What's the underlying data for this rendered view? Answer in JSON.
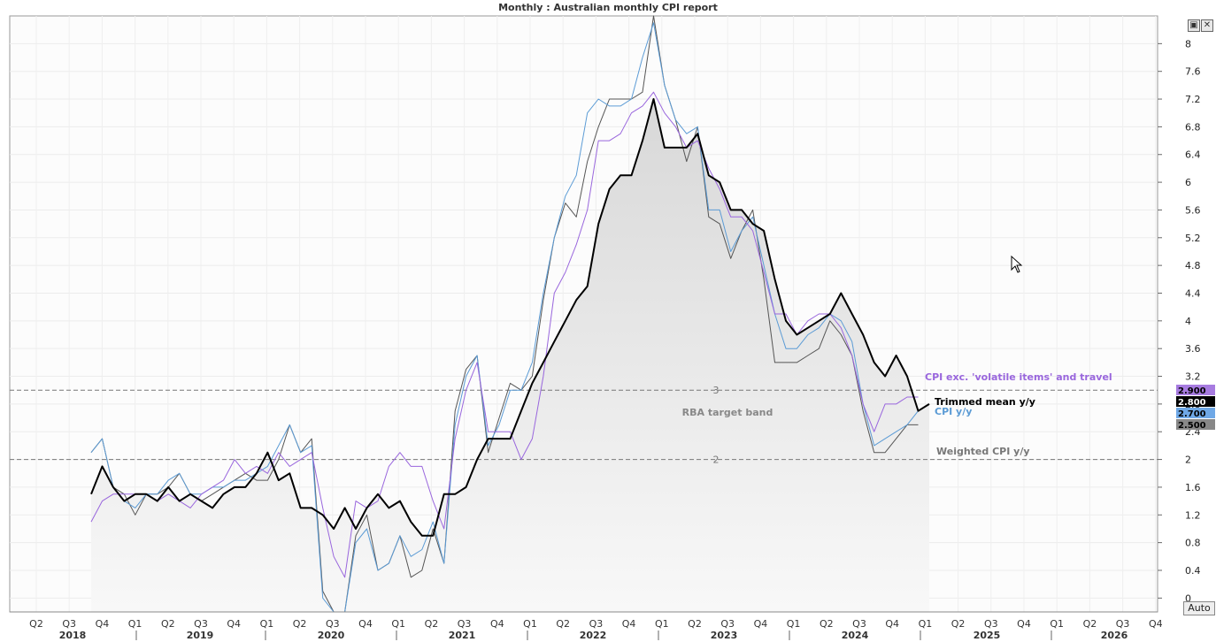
{
  "title": "Monthly : Australian monthly CPI report",
  "toolbar": {
    "restore_icon": "window-restore-icon",
    "close_icon": "close-icon",
    "auto_label": "Auto"
  },
  "chart_data": {
    "type": "line",
    "title": "Monthly : Australian monthly CPI report",
    "y_axis": {
      "min": -0.2,
      "max": 8.4,
      "ticks": [
        0,
        0.4,
        0.8,
        1.2,
        1.6,
        2,
        2.4,
        2.8,
        3.2,
        3.6,
        4,
        4.4,
        4.8,
        5.2,
        5.6,
        6,
        6.4,
        6.8,
        7.2,
        7.6,
        8
      ],
      "side": "right"
    },
    "x_axis": {
      "start_month": 2018.25,
      "quarter_labels": [
        "Q2",
        "Q3",
        "Q4",
        "Q1",
        "Q2",
        "Q3",
        "Q4",
        "Q1",
        "Q2",
        "Q3",
        "Q4",
        "Q1",
        "Q2",
        "Q3",
        "Q4",
        "Q1",
        "Q2",
        "Q3",
        "Q4",
        "Q1",
        "Q2",
        "Q3",
        "Q4",
        "Q1",
        "Q2",
        "Q3",
        "Q4",
        "Q1",
        "Q2",
        "Q3",
        "Q4",
        "Q1",
        "Q2",
        "Q3",
        "Q4"
      ],
      "year_labels": [
        "2018",
        "2019",
        "2020",
        "2021",
        "2022",
        "2023",
        "2024",
        "2025",
        "2026"
      ]
    },
    "reference_lines": [
      {
        "value": 3,
        "label": "3"
      },
      {
        "value": 2,
        "label": "2"
      }
    ],
    "band_label": "RBA target band",
    "series": [
      {
        "name": "Weighted CPI y/y",
        "color": "#555555",
        "last_value": "2.500",
        "values": [
          2.1,
          2.3,
          1.6,
          1.5,
          1.2,
          1.5,
          1.5,
          1.6,
          1.8,
          1.5,
          1.4,
          1.5,
          1.6,
          1.7,
          1.8,
          1.7,
          1.7,
          2.0,
          2.5,
          2.1,
          2.3,
          0.1,
          -0.2,
          -0.2,
          0.9,
          1.2,
          0.4,
          0.5,
          0.9,
          0.3,
          0.4,
          1.0,
          0.5,
          2.7,
          3.3,
          3.5,
          2.1,
          2.6,
          3.1,
          3.0,
          3.2,
          4.3,
          5.2,
          5.7,
          5.5,
          6.3,
          6.8,
          7.2,
          7.2,
          7.2,
          7.3,
          8.4,
          7.4,
          6.9,
          6.3,
          6.8,
          5.5,
          5.4,
          4.9,
          5.3,
          5.6,
          4.6,
          3.4,
          3.4,
          3.4,
          3.5,
          3.6,
          4.0,
          3.8,
          3.5,
          2.7,
          2.1,
          2.1,
          2.3,
          2.5,
          2.5
        ]
      },
      {
        "name": "CPI y/y",
        "color": "#5b9bd5",
        "last_value": "2.700",
        "values": [
          2.1,
          2.3,
          1.6,
          1.4,
          1.3,
          1.5,
          1.5,
          1.7,
          1.8,
          1.5,
          1.5,
          1.6,
          1.6,
          1.7,
          1.7,
          1.8,
          1.9,
          2.2,
          2.5,
          2.1,
          2.2,
          0.0,
          -0.2,
          -0.2,
          0.8,
          1.0,
          0.4,
          0.5,
          0.9,
          0.6,
          0.7,
          1.1,
          0.5,
          2.5,
          3.2,
          3.5,
          2.2,
          2.5,
          3.0,
          3.0,
          3.4,
          4.4,
          5.2,
          5.8,
          6.1,
          7.0,
          7.2,
          7.1,
          7.1,
          7.2,
          7.8,
          8.3,
          7.4,
          6.9,
          6.7,
          6.8,
          5.6,
          5.6,
          5.0,
          5.3,
          5.5,
          4.8,
          4.1,
          3.6,
          3.6,
          3.8,
          3.9,
          4.1,
          4.0,
          3.7,
          2.8,
          2.2,
          2.3,
          2.4,
          2.5,
          2.7
        ]
      },
      {
        "name": "CPI exc. 'volatile items' and travel",
        "color": "#9966dd",
        "last_value": "2.900",
        "values": [
          1.1,
          1.4,
          1.5,
          1.5,
          1.5,
          1.5,
          1.4,
          1.5,
          1.4,
          1.3,
          1.5,
          1.6,
          1.7,
          2.0,
          1.8,
          1.9,
          1.8,
          2.1,
          1.9,
          2.0,
          2.1,
          1.3,
          0.6,
          0.3,
          1.4,
          1.3,
          1.4,
          1.9,
          2.1,
          1.9,
          1.9,
          1.4,
          1.0,
          2.3,
          3.0,
          3.4,
          2.4,
          2.4,
          2.4,
          2.0,
          2.3,
          3.2,
          4.4,
          4.7,
          5.1,
          5.6,
          6.6,
          6.6,
          6.7,
          7.0,
          7.1,
          7.3,
          7.0,
          6.8,
          6.5,
          6.6,
          6.2,
          5.9,
          5.5,
          5.5,
          5.3,
          4.7,
          4.1,
          4.1,
          3.8,
          4.0,
          4.1,
          4.1,
          3.9,
          3.5,
          2.8,
          2.4,
          2.8,
          2.8,
          2.9,
          2.9
        ]
      },
      {
        "name": "Trimmed mean y/y",
        "color": "#000000",
        "last_value": "2.800",
        "values": [
          1.5,
          1.9,
          1.6,
          1.4,
          1.5,
          1.5,
          1.4,
          1.6,
          1.4,
          1.5,
          1.4,
          1.3,
          1.5,
          1.6,
          1.6,
          1.8,
          2.1,
          1.7,
          1.8,
          1.3,
          1.3,
          1.2,
          1.0,
          1.3,
          1.0,
          1.3,
          1.5,
          1.3,
          1.4,
          1.1,
          0.9,
          0.9,
          1.5,
          1.5,
          1.6,
          2.0,
          2.3,
          2.3,
          2.3,
          2.7,
          3.1,
          3.4,
          3.7,
          4.0,
          4.3,
          4.5,
          5.4,
          5.9,
          6.1,
          6.1,
          6.6,
          7.2,
          6.5,
          6.5,
          6.5,
          6.7,
          6.1,
          6.0,
          5.6,
          5.6,
          5.4,
          5.3,
          4.6,
          4.0,
          3.8,
          3.9,
          4.0,
          4.1,
          4.4,
          4.1,
          3.8,
          3.4,
          3.2,
          3.5,
          3.2,
          2.7,
          2.8
        ]
      }
    ],
    "series_labels": [
      {
        "series": "CPI exc. 'volatile items' and travel",
        "text": "CPI exc. 'volatile items' and travel"
      },
      {
        "series": "Trimmed mean y/y",
        "text": "Trimmed mean y/y"
      },
      {
        "series": "CPI y/y",
        "text": "CPI y/y"
      },
      {
        "series": "Weighted CPI y/y",
        "text": "Weighted CPI y/y"
      }
    ]
  }
}
